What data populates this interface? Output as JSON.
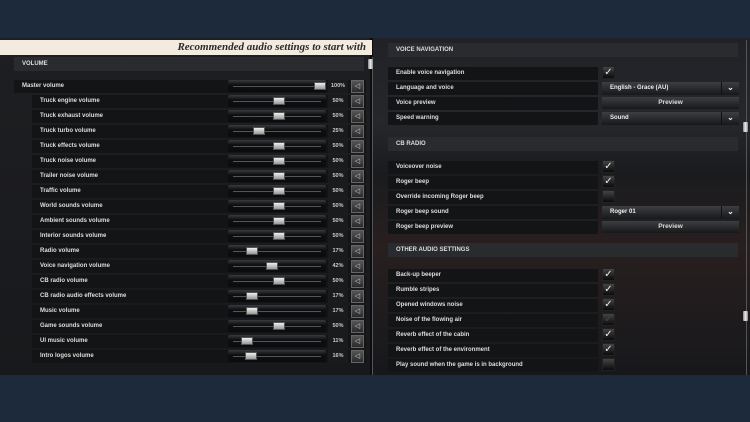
{
  "banner": "Recommended audio settings to start with",
  "volume": {
    "header": "VOLUME",
    "items": [
      {
        "label": "Master volume",
        "value": 100,
        "pct": "100%",
        "sub": false
      },
      {
        "label": "Truck engine volume",
        "value": 50,
        "pct": "50%",
        "sub": true
      },
      {
        "label": "Truck exhaust volume",
        "value": 50,
        "pct": "50%",
        "sub": true
      },
      {
        "label": "Truck turbo volume",
        "value": 25,
        "pct": "25%",
        "sub": true
      },
      {
        "label": "Truck effects volume",
        "value": 50,
        "pct": "50%",
        "sub": true
      },
      {
        "label": "Truck noise volume",
        "value": 50,
        "pct": "50%",
        "sub": true
      },
      {
        "label": "Trailer noise volume",
        "value": 50,
        "pct": "50%",
        "sub": true
      },
      {
        "label": "Traffic volume",
        "value": 50,
        "pct": "50%",
        "sub": true
      },
      {
        "label": "World sounds volume",
        "value": 50,
        "pct": "50%",
        "sub": true
      },
      {
        "label": "Ambient sounds volume",
        "value": 50,
        "pct": "50%",
        "sub": true
      },
      {
        "label": "Interior sounds volume",
        "value": 50,
        "pct": "50%",
        "sub": true
      },
      {
        "label": "Radio volume",
        "value": 17,
        "pct": "17%",
        "sub": true
      },
      {
        "label": "Voice navigation volume",
        "value": 42,
        "pct": "42%",
        "sub": true
      },
      {
        "label": "CB radio volume",
        "value": 50,
        "pct": "50%",
        "sub": true
      },
      {
        "label": "CB radio audio effects volume",
        "value": 17,
        "pct": "17%",
        "sub": true
      },
      {
        "label": "Music volume",
        "value": 17,
        "pct": "17%",
        "sub": true
      },
      {
        "label": "Game sounds volume",
        "value": 50,
        "pct": "50%",
        "sub": true
      },
      {
        "label": "UI music volume",
        "value": 11,
        "pct": "11%",
        "sub": true
      },
      {
        "label": "Intro logos volume",
        "value": 16,
        "pct": "16%",
        "sub": true
      }
    ]
  },
  "voice_nav": {
    "header": "VOICE NAVIGATION",
    "items": [
      {
        "label": "Enable voice navigation",
        "type": "check",
        "checked": true
      },
      {
        "label": "Language and voice",
        "type": "dropdown",
        "value": "English - Grace (AU)"
      },
      {
        "label": "Voice preview",
        "type": "button",
        "value": "Preview"
      },
      {
        "label": "Speed warning",
        "type": "dropdown",
        "value": "Sound"
      }
    ]
  },
  "cb_radio": {
    "header": "CB RADIO",
    "items": [
      {
        "label": "Voiceover noise",
        "type": "check",
        "checked": true
      },
      {
        "label": "Roger beep",
        "type": "check",
        "checked": true
      },
      {
        "label": "Override incoming Roger beep",
        "type": "check",
        "checked": false
      },
      {
        "label": "Roger beep sound",
        "type": "dropdown",
        "value": "Roger 01"
      },
      {
        "label": "Roger beep preview",
        "type": "button",
        "value": "Preview"
      }
    ]
  },
  "other": {
    "header": "OTHER AUDIO SETTINGS",
    "items": [
      {
        "label": "Back-up beeper",
        "type": "check",
        "checked": true
      },
      {
        "label": "Rumble stripes",
        "type": "check",
        "checked": true
      },
      {
        "label": "Opened windows noise",
        "type": "check",
        "checked": true
      },
      {
        "label": "Noise of the flowing air",
        "type": "check",
        "checked": true,
        "disabled": true
      },
      {
        "label": "Reverb effect of the cabin",
        "type": "check",
        "checked": true
      },
      {
        "label": "Reverb effect of the environment",
        "type": "check",
        "checked": true
      },
      {
        "label": "Play sound when the game is in background",
        "type": "check",
        "checked": false
      }
    ]
  },
  "icons": {
    "mute": "speaker-icon",
    "check": "checkmark-icon",
    "dropdown": "chevron-down-icon"
  }
}
